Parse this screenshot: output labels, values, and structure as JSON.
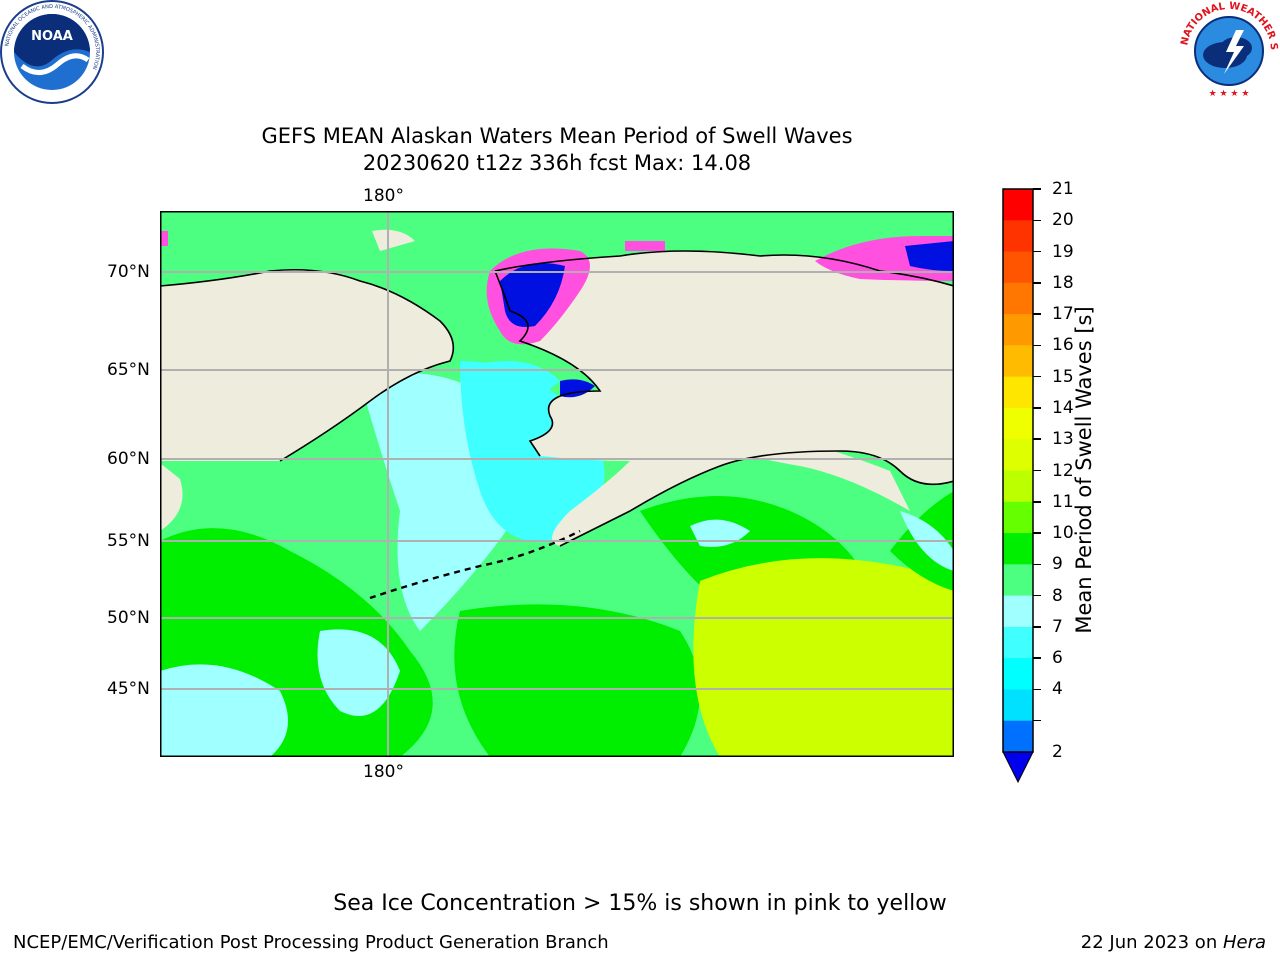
{
  "header": {
    "title_line1": "GEFS MEAN Alaskan Waters Mean Period of Swell Waves",
    "title_line2": "20230620 t12z 336h fcst   Max: 14.08"
  },
  "logos": {
    "noaa_center": "NOAA",
    "noaa_ring": "NATIONAL OCEANIC AND ATMOSPHERIC ADMINISTRATION",
    "noaa_ring_bottom": "U.S. DEPARTMENT OF COMMERCE",
    "nws_ring": "NATIONAL WEATHER SERVICE"
  },
  "map": {
    "lon_label_top": "180°",
    "lon_label_bottom": "180°",
    "lat_labels": [
      "70°N",
      "65°N",
      "60°N",
      "55°N",
      "50°N",
      "45°N"
    ],
    "colors": {
      "land": "#eeecdc",
      "ocean_mid": "#4cff80",
      "ocean_green": "#00ee00",
      "ocean_light": "#a0ffff",
      "ocean_cyan": "#40ffff",
      "ocean_yellow": "#ccff00",
      "ice_blue": "#0010e0",
      "ice_magenta": "#ff50e0",
      "grid": "#b0b0b0"
    }
  },
  "colorbar": {
    "label": "Mean Period of Swell Waves [s]",
    "ticks": [
      "21",
      "20",
      "19",
      "18",
      "17",
      "16",
      "15",
      "14",
      "13",
      "12",
      "11",
      "10",
      "9",
      "8",
      "7",
      "6",
      "4",
      "2"
    ],
    "colors": [
      "#ff0000",
      "#ff3300",
      "#ff5500",
      "#ff7700",
      "#ff9900",
      "#ffbb00",
      "#ffe600",
      "#f0ff00",
      "#ddff00",
      "#bbff00",
      "#66ff00",
      "#00ee00",
      "#4cff80",
      "#a0ffff",
      "#40ffff",
      "#00ffff",
      "#00e0ff",
      "#0070ff"
    ],
    "under_color": "#0000ee"
  },
  "footer": {
    "note": "Sea Ice Concentration > 15% is shown in pink to yellow",
    "left": "NCEP/EMC/Verification Post Processing Product Generation Branch",
    "right_date": "22 Jun 2023 on ",
    "right_machine": "Hera"
  }
}
